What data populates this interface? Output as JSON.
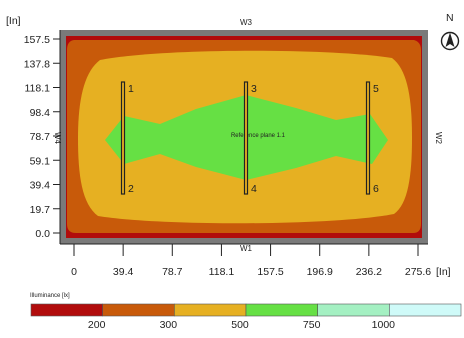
{
  "units": {
    "y": "[In]",
    "x": "[In]"
  },
  "compass": {
    "label": "N",
    "icon": "compass-north-icon"
  },
  "walls": {
    "top": "W3",
    "bottom": "W1",
    "left": "W4",
    "right": "W2"
  },
  "axes": {
    "y_ticks": [
      "157.5",
      "137.8",
      "118.1",
      "98.4",
      "78.7",
      "59.1",
      "39.4",
      "19.7",
      "0.0"
    ],
    "x_ticks": [
      "0",
      "39.4",
      "78.7",
      "118.1",
      "157.5",
      "196.9",
      "236.2",
      "275.6"
    ],
    "x_range": [
      0,
      275.6
    ],
    "y_range": [
      0,
      157.5
    ]
  },
  "reference_plane": "Reference plane 1.1",
  "luminaires": [
    {
      "top": "1",
      "bottom": "2",
      "x": 39.4
    },
    {
      "top": "3",
      "bottom": "4",
      "x": 137.8
    },
    {
      "top": "5",
      "bottom": "6",
      "x": 236.2
    }
  ],
  "legend": {
    "title": "Illuminance [lx]",
    "colors": [
      "#b10c0c",
      "#c85a0a",
      "#e6b022",
      "#66e044",
      "#a4f0c2",
      "#cffaf8"
    ],
    "thresholds": [
      "200",
      "300",
      "500",
      "750",
      "1000"
    ]
  },
  "colors": {
    "frame": "#7a7a7a",
    "zone_lt200": "#b10c0c",
    "zone_200_300": "#c85a0a",
    "zone_300_500": "#e6b022",
    "zone_500_750": "#66e044"
  }
}
